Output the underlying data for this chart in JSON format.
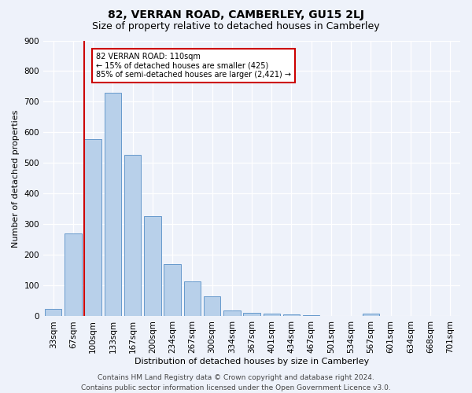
{
  "title": "82, VERRAN ROAD, CAMBERLEY, GU15 2LJ",
  "subtitle": "Size of property relative to detached houses in Camberley",
  "xlabel": "Distribution of detached houses by size in Camberley",
  "ylabel": "Number of detached properties",
  "bar_labels": [
    "33sqm",
    "67sqm",
    "100sqm",
    "133sqm",
    "167sqm",
    "200sqm",
    "234sqm",
    "267sqm",
    "300sqm",
    "334sqm",
    "367sqm",
    "401sqm",
    "434sqm",
    "467sqm",
    "501sqm",
    "534sqm",
    "567sqm",
    "601sqm",
    "634sqm",
    "668sqm",
    "701sqm"
  ],
  "bar_values": [
    25,
    270,
    578,
    730,
    528,
    328,
    170,
    115,
    65,
    18,
    12,
    10,
    7,
    5,
    0,
    0,
    8,
    0,
    0,
    0,
    0
  ],
  "bar_color": "#b8d0ea",
  "bar_edge_color": "#6699cc",
  "vline_color": "#cc0000",
  "annotation_text": "82 VERRAN ROAD: 110sqm\n← 15% of detached houses are smaller (425)\n85% of semi-detached houses are larger (2,421) →",
  "annotation_box_color": "#ffffff",
  "annotation_box_edge": "#cc0000",
  "ylim": [
    0,
    900
  ],
  "yticks": [
    0,
    100,
    200,
    300,
    400,
    500,
    600,
    700,
    800,
    900
  ],
  "footer_line1": "Contains HM Land Registry data © Crown copyright and database right 2024.",
  "footer_line2": "Contains public sector information licensed under the Open Government Licence v3.0.",
  "bg_color": "#eef2fa",
  "grid_color": "#ffffff",
  "title_fontsize": 10,
  "subtitle_fontsize": 9,
  "axis_fontsize": 8,
  "tick_fontsize": 7.5,
  "footer_fontsize": 6.5
}
